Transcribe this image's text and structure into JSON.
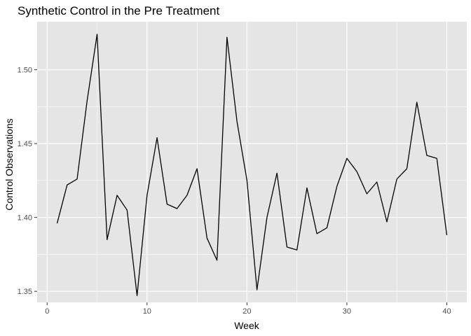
{
  "chart_data": {
    "type": "line",
    "title": "Synthetic Control in the Pre Treatment",
    "xlabel": "Week",
    "ylabel": "Control Observations",
    "xlim": [
      -1,
      42
    ],
    "ylim": [
      1.3425,
      1.5325
    ],
    "xticks": [
      0,
      10,
      20,
      30,
      40
    ],
    "xtick_labels": [
      "0",
      "10",
      "20",
      "30",
      "40"
    ],
    "yticks": [
      1.35,
      1.4,
      1.45,
      1.5
    ],
    "ytick_labels": [
      "1.35",
      "1.40",
      "1.45",
      "1.50"
    ],
    "grid": true,
    "colors": {
      "panel": "#e5e5e5",
      "grid": "#ffffff",
      "line": "#000000"
    },
    "series": [
      {
        "x": [
          1,
          2,
          3,
          4,
          5,
          6,
          7,
          8,
          9,
          10,
          11,
          12,
          13,
          14,
          15,
          16,
          17,
          18,
          19,
          20,
          21,
          22,
          23,
          24,
          25,
          26,
          27,
          28,
          29,
          30,
          31,
          32,
          33,
          34,
          35,
          36,
          37,
          38,
          39,
          40
        ],
        "y": [
          1.396,
          1.422,
          1.426,
          1.479,
          1.524,
          1.385,
          1.415,
          1.405,
          1.347,
          1.415,
          1.454,
          1.409,
          1.406,
          1.415,
          1.433,
          1.386,
          1.371,
          1.522,
          1.465,
          1.425,
          1.351,
          1.4,
          1.43,
          1.38,
          1.378,
          1.42,
          1.389,
          1.393,
          1.421,
          1.44,
          1.431,
          1.416,
          1.424,
          1.397,
          1.426,
          1.433,
          1.478,
          1.442,
          1.44,
          1.388
        ]
      }
    ]
  }
}
